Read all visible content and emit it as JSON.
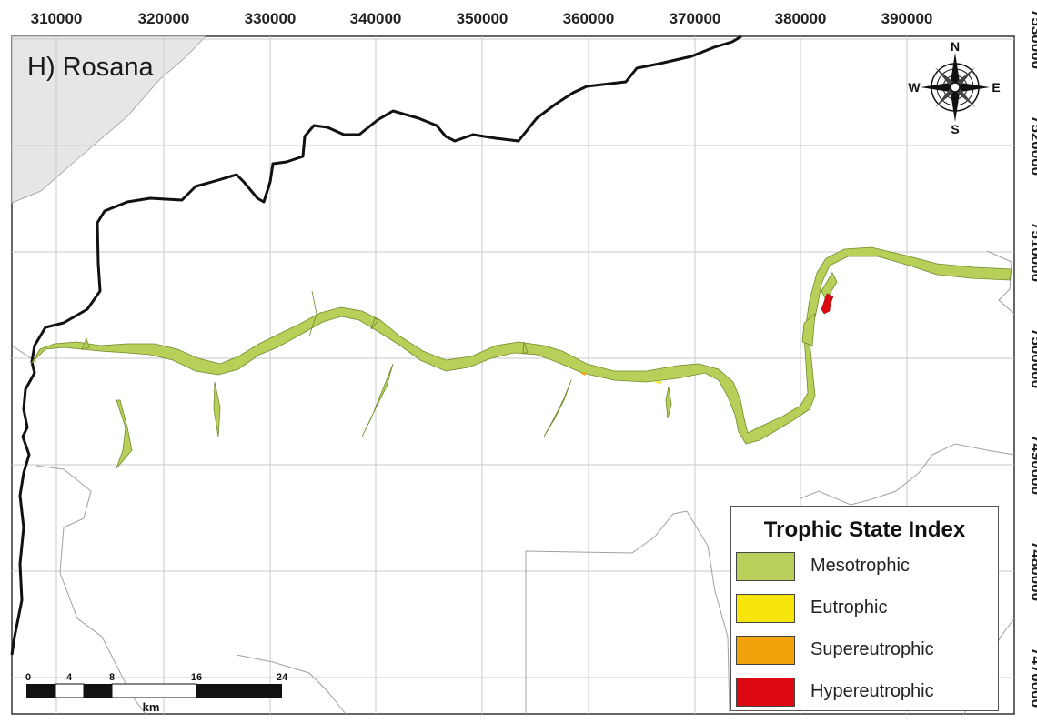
{
  "panel_label": "H) Rosana",
  "x_ticks": [
    "310000",
    "320000",
    "330000",
    "340000",
    "350000",
    "360000",
    "370000",
    "380000",
    "390000"
  ],
  "y_ticks": [
    "7530000",
    "7520000",
    "7510000",
    "7500000",
    "7490000",
    "7480000",
    "7470000"
  ],
  "compass": {
    "n": "N",
    "s": "S",
    "e": "E",
    "w": "W"
  },
  "legend": {
    "title": "Trophic State Index",
    "items": [
      {
        "label": "Mesotrophic",
        "color": "#b8d05a"
      },
      {
        "label": "Eutrophic",
        "color": "#f7e50a"
      },
      {
        "label": "Supereutrophic",
        "color": "#f2a20a"
      },
      {
        "label": "Hypereutrophic",
        "color": "#dc0a10"
      }
    ]
  },
  "scale_bar": {
    "ticks": [
      "0",
      "4",
      "8",
      "16",
      "24"
    ],
    "unit": "km"
  },
  "colors": {
    "reservoir": "#b8d05a",
    "shaded_area": "#e6e6e6",
    "grid": "#c9c9c9",
    "border_black": "#111111"
  }
}
